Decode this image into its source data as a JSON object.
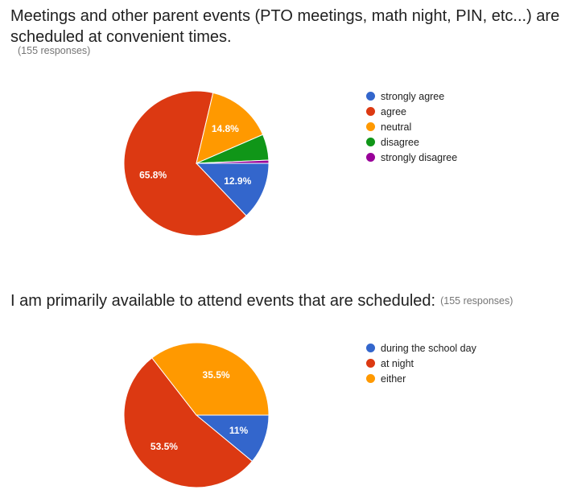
{
  "charts": [
    {
      "question": "Meetings and other parent events (PTO meetings, math night, PIN, etc...) are scheduled at convenient times.",
      "responses": "(155 responses)"
    },
    {
      "question": "I am primarily available to attend events that are scheduled:",
      "responses": "(155 responses)"
    }
  ],
  "chart_data": [
    {
      "type": "pie",
      "title": "Meetings and other parent events (PTO meetings, math night, PIN, etc...) are scheduled at convenient times.",
      "categories": [
        "strongly agree",
        "agree",
        "neutral",
        "disagree",
        "strongly disagree"
      ],
      "values": [
        12.9,
        65.8,
        14.8,
        5.8,
        0.7
      ],
      "labels": [
        "12.9%",
        "65.8%",
        "14.8%",
        "",
        ""
      ],
      "colors": [
        "#3366cc",
        "#dc3912",
        "#ff9900",
        "#109618",
        "#990099"
      ],
      "legend": "right"
    },
    {
      "type": "pie",
      "title": "I am primarily available to attend events that are scheduled:",
      "categories": [
        "during the school day",
        "at night",
        "either"
      ],
      "values": [
        11,
        53.5,
        35.5
      ],
      "labels": [
        "11%",
        "53.5%",
        "35.5%"
      ],
      "colors": [
        "#3366cc",
        "#dc3912",
        "#ff9900"
      ],
      "legend": "right"
    }
  ]
}
